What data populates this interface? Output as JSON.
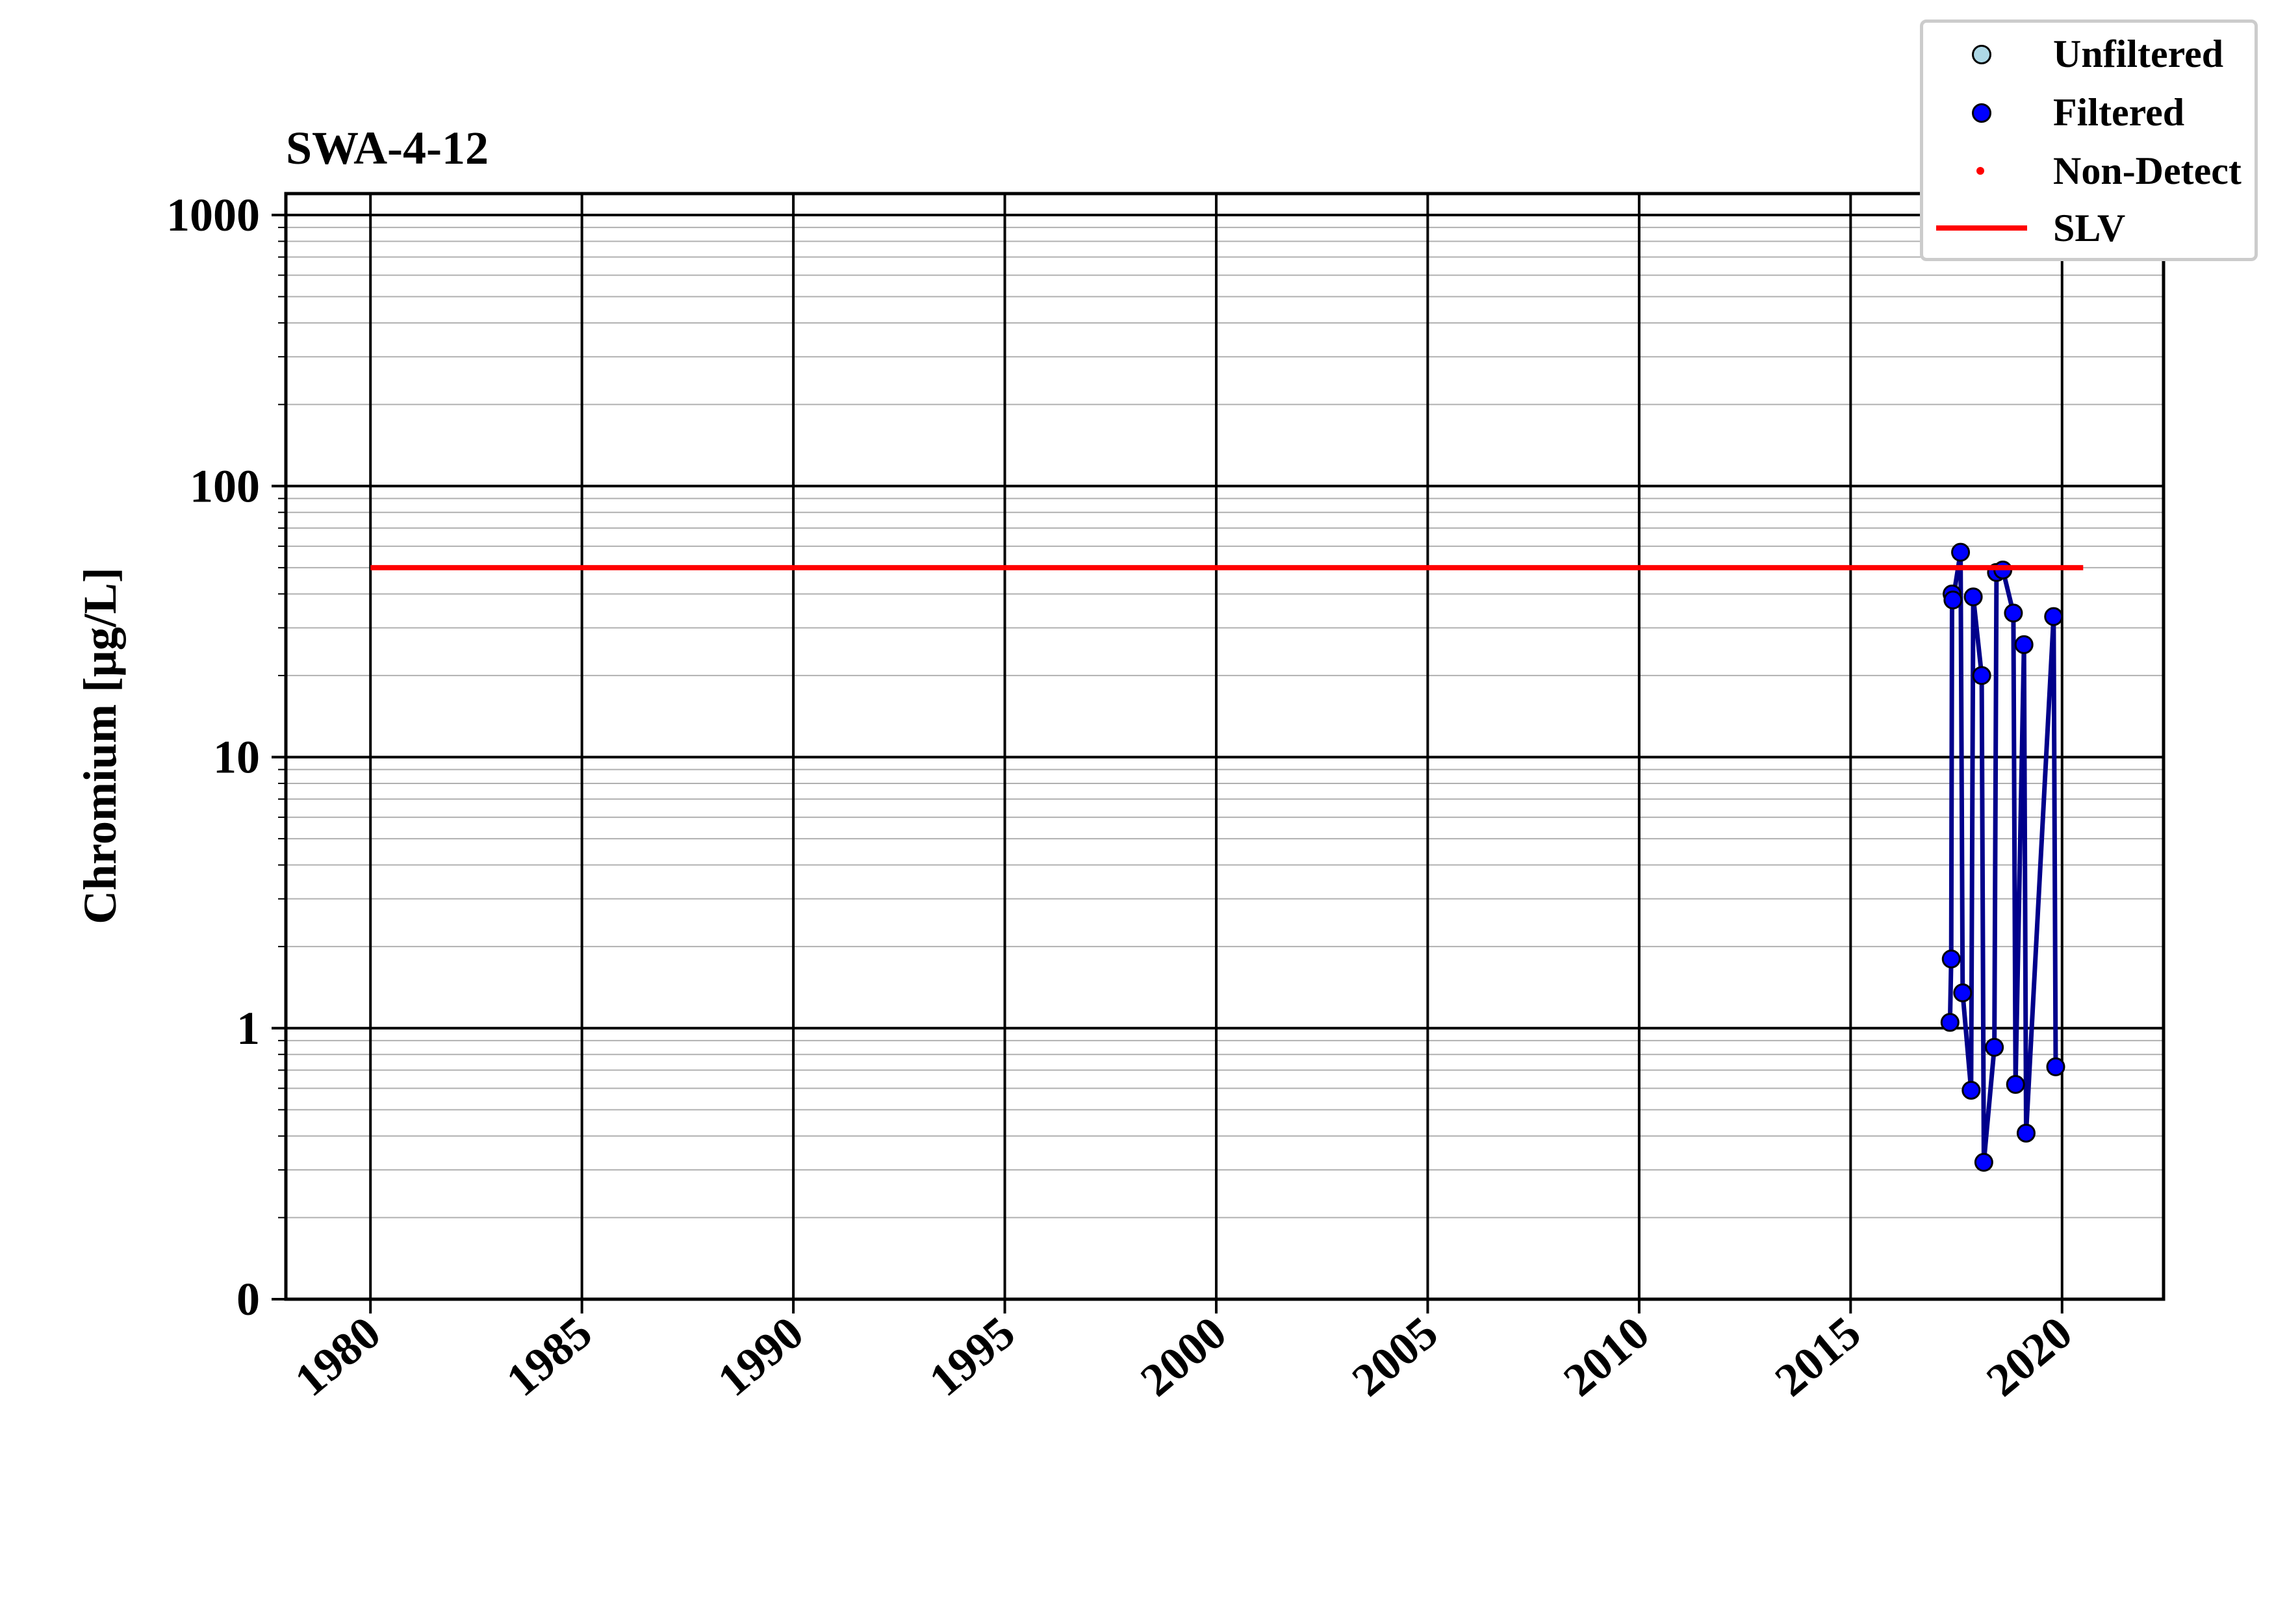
{
  "chart_data": {
    "type": "line",
    "title": "SWA-4-12",
    "ylabel": "Chromium [μg/L]",
    "xlabel": "",
    "yscale": "log",
    "ylim": [
      0.1,
      1200
    ],
    "xlim": [
      1978.0,
      2022.4
    ],
    "y_ticks": [
      {
        "value": 0.1,
        "label": "0"
      },
      {
        "value": 1,
        "label": "1"
      },
      {
        "value": 10,
        "label": "10"
      },
      {
        "value": 100,
        "label": "100"
      },
      {
        "value": 1000,
        "label": "1000"
      }
    ],
    "x_ticks": [
      1980,
      1985,
      1990,
      1995,
      2000,
      2005,
      2010,
      2015,
      2020
    ],
    "grid": true,
    "legend_placement": "top-right",
    "legend": [
      {
        "name": "Unfiltered",
        "symbol": "marker",
        "color": "#add8e6"
      },
      {
        "name": "Filtered",
        "symbol": "marker",
        "color": "#0000ff"
      },
      {
        "name": "Non-Detect",
        "symbol": "dot",
        "color": "#ff0000"
      },
      {
        "name": "SLV",
        "symbol": "line",
        "color": "#ff0000"
      }
    ],
    "series": [
      {
        "name": "Filtered",
        "color": "#0000ff",
        "line_color": "#00008b",
        "x": [
          2017.35,
          2017.38,
          2017.4,
          2017.42,
          2017.6,
          2017.65,
          2017.85,
          2017.9,
          2018.1,
          2018.15,
          2018.4,
          2018.45,
          2018.6,
          2018.85,
          2018.9,
          2019.1,
          2019.15,
          2019.8,
          2019.85
        ],
        "y": [
          1.05,
          1.8,
          40,
          38,
          57,
          1.35,
          0.59,
          39,
          20,
          0.32,
          0.85,
          48,
          49,
          34,
          0.62,
          26,
          0.41,
          33,
          0.72
        ]
      },
      {
        "name": "SLV",
        "color": "#ff0000",
        "x": [
          1980,
          2020.5
        ],
        "y": [
          50,
          50
        ]
      }
    ]
  }
}
